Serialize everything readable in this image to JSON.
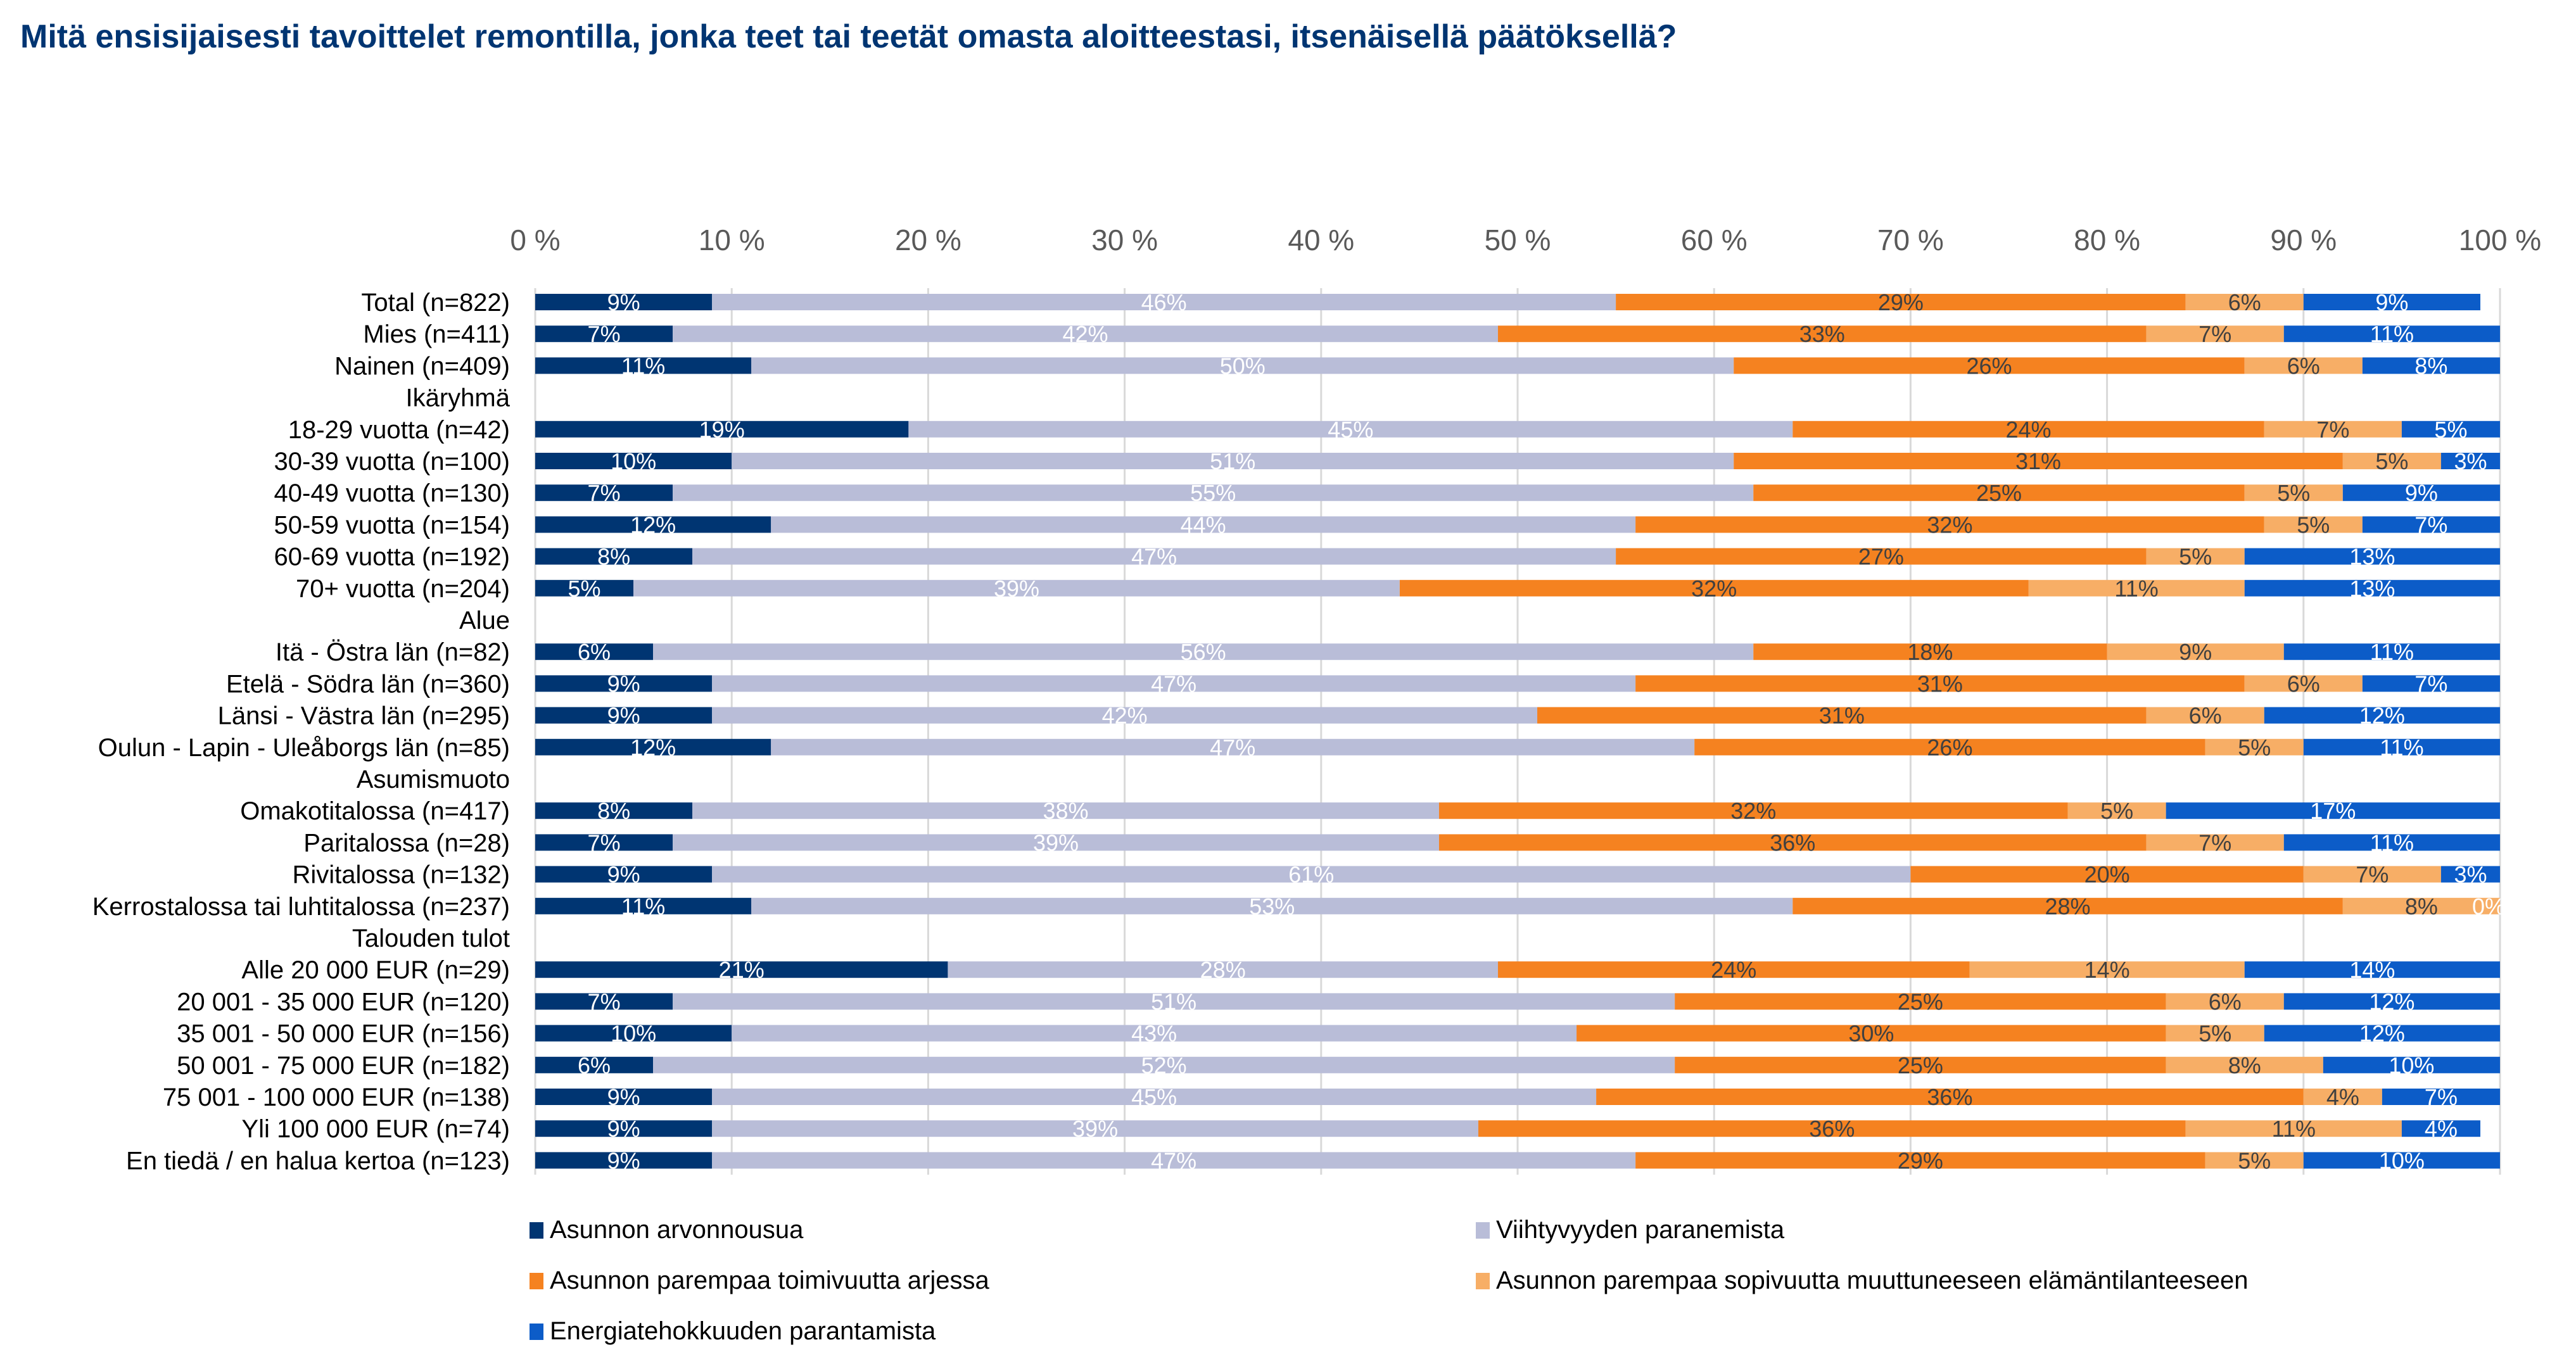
{
  "title": "Mitä ensisijaisesti tavoittelet remontilla, jonka teet tai teetät omasta aloitteestasi, itsenäisellä päätöksellä?",
  "chart_data": {
    "type": "bar",
    "orientation": "horizontal",
    "stacked": "percent",
    "title": "Mitä ensisijaisesti tavoittelet remontilla, jonka teet tai teetät omasta aloitteestasi, itsenäisellä päätöksellä?",
    "xlabel": "",
    "ylabel": "",
    "xlim": [
      0,
      100
    ],
    "x_ticks": [
      "0 %",
      "10 %",
      "20 %",
      "30 %",
      "40 %",
      "50 %",
      "60 %",
      "70 %",
      "80 %",
      "90 %",
      "100 %"
    ],
    "x_axis_position": "top",
    "grid": true,
    "legend_position": "bottom",
    "categories": [
      "Total (n=822)",
      "Mies (n=411)",
      "Nainen  (n=409)",
      "Ikäryhmä",
      "18-29 vuotta (n=42)",
      "30-39 vuotta (n=100)",
      "40-49 vuotta (n=130)",
      "50-59 vuotta (n=154)",
      "60-69 vuotta (n=192)",
      "70+ vuotta (n=204)",
      "Alue",
      "Itä - Östra län (n=82)",
      "Etelä - Södra län (n=360)",
      "Länsi - Västra län (n=295)",
      "Oulun - Lapin - Uleåborgs län (n=85)",
      "Asumismuoto",
      "Omakotitalossa (n=417)",
      "Paritalossa (n=28)",
      "Rivitalossa (n=132)",
      "Kerrostalossa tai luhtitalossa (n=237)",
      "Talouden tulot",
      "Alle 20 000 EUR (n=29)",
      "20 001 - 35 000 EUR (n=120)",
      "35 001 - 50 000 EUR (n=156)",
      "50 001 - 75 000 EUR (n=182)",
      "75 001 - 100 000 EUR (n=138)",
      "Yli 100 000 EUR (n=74)",
      "En tiedä / en halua kertoa (n=123)"
    ],
    "series": [
      {
        "name": "Asunnon arvonnousua",
        "color": "#003572",
        "label_color": "#ffffff",
        "values": [
          9,
          7,
          11,
          null,
          19,
          10,
          7,
          12,
          8,
          5,
          null,
          6,
          9,
          9,
          12,
          null,
          8,
          7,
          9,
          11,
          null,
          21,
          7,
          10,
          6,
          9,
          9,
          9
        ]
      },
      {
        "name": "Viihtyvyyden paranemista",
        "color": "#b9bdd8",
        "label_color": "#ffffff",
        "values": [
          46,
          42,
          50,
          null,
          45,
          51,
          55,
          44,
          47,
          39,
          null,
          56,
          47,
          42,
          47,
          null,
          38,
          39,
          61,
          53,
          null,
          28,
          51,
          43,
          52,
          45,
          39,
          47
        ]
      },
      {
        "name": "Asunnon parempaa toimivuutta arjessa",
        "color": "#f58220",
        "label_color": "#404040",
        "values": [
          29,
          33,
          26,
          null,
          24,
          31,
          25,
          32,
          27,
          32,
          null,
          18,
          31,
          31,
          26,
          null,
          32,
          36,
          20,
          28,
          null,
          24,
          25,
          30,
          25,
          36,
          36,
          29
        ]
      },
      {
        "name": "Asunnon parempaa sopivuutta muuttuneeseen elämäntilanteeseen",
        "color": "#f7ae66",
        "label_color": "#404040",
        "values": [
          6,
          7,
          6,
          null,
          7,
          5,
          5,
          5,
          5,
          11,
          null,
          9,
          6,
          6,
          5,
          null,
          5,
          7,
          7,
          8,
          null,
          14,
          6,
          5,
          8,
          4,
          11,
          5
        ]
      },
      {
        "name": "Energiatehokkuuden parantamista",
        "color": "#0c5cc8",
        "label_color": "#ffffff",
        "values": [
          9,
          11,
          8,
          null,
          5,
          3,
          9,
          7,
          13,
          13,
          null,
          11,
          7,
          12,
          11,
          null,
          17,
          11,
          3,
          0,
          null,
          14,
          12,
          12,
          10,
          7,
          4,
          10
        ]
      }
    ]
  },
  "legend": [
    {
      "label": "Asunnon arvonnousua",
      "color": "#003572"
    },
    {
      "label": "Viihtyvyyden paranemista",
      "color": "#b9bdd8"
    },
    {
      "label": "Asunnon parempaa toimivuutta arjessa",
      "color": "#f58220"
    },
    {
      "label": "Asunnon parempaa sopivuutta muuttuneeseen elämäntilanteeseen",
      "color": "#f7ae66"
    },
    {
      "label": "Energiatehokkuuden parantamista",
      "color": "#0c5cc8"
    }
  ]
}
